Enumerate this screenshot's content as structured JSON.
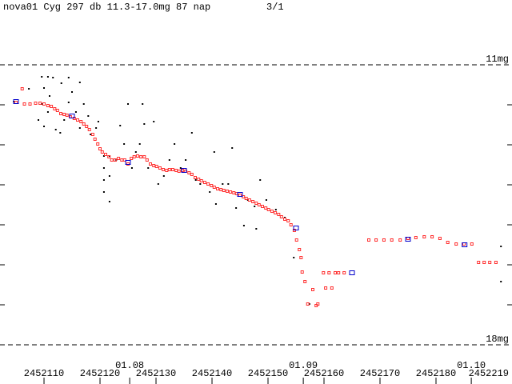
{
  "chart_data": {
    "type": "scatter",
    "title": "nova01 Cyg 297 db 11.3-17.0mg 87 nap",
    "page": "3/1",
    "xlim": [
      2452102.14,
      2452193.57
    ],
    "ylim": [
      9.38,
      18.98
    ],
    "y_inverted": true,
    "xticks": [
      2452110,
      2452120,
      2452130,
      2452140,
      2452150,
      2452160,
      2452170,
      2452180
    ],
    "x_end_label": "2452219",
    "date_ticks": [
      {
        "value": 2452125.3,
        "label": "01.08"
      },
      {
        "value": 2452156.3,
        "label": "01.09"
      },
      {
        "value": 2452186.3,
        "label": "01.10"
      }
    ],
    "yticks": [
      {
        "value": 11,
        "label": "11mg"
      },
      {
        "value": 18,
        "label": "18mg"
      }
    ],
    "yminor": [
      12,
      13,
      14,
      15,
      16,
      17
    ],
    "series": [
      {
        "marker": "dot",
        "color": "#000000",
        "x": [
          2452104.6,
          2452107.3,
          2452109.6,
          2452110.7,
          2452111.6,
          2452113.1,
          2452114.4,
          2452116.4,
          2452110.0,
          2452111.0,
          2452109.6,
          2452110.7,
          2452109.0,
          2452110.0,
          2452112.1,
          2452112.9,
          2452113.6,
          2452114.4,
          2452115.0,
          2452115.7,
          2452116.4,
          2452117.1,
          2452117.9,
          2452118.3,
          2452119.3,
          2452119.7,
          2452120.7,
          2452120.7,
          2452120.7,
          2452120.7,
          2452121.7,
          2452121.7,
          2452121.7,
          2452122.9,
          2452123.6,
          2452124.3,
          2452125.0,
          2452125.7,
          2452126.4,
          2452127.1,
          2452127.6,
          2452127.9,
          2452128.6,
          2452129.6,
          2452130.4,
          2452131.4,
          2452132.4,
          2452133.3,
          2452134.4,
          2452135.3,
          2452136.4,
          2452137.1,
          2452137.9,
          2452139.6,
          2452140.4,
          2452140.7,
          2452141.9,
          2452142.9,
          2452143.6,
          2452144.3,
          2452145.7,
          2452146.4,
          2452147.6,
          2452147.9,
          2452148.6,
          2452149.7,
          2452151.4,
          2452153.0,
          2452154.6,
          2452157.4,
          2452191.6,
          2452191.6
        ],
        "values": [
          11.92,
          11.6,
          11.3,
          11.3,
          11.32,
          11.46,
          11.32,
          11.44,
          11.58,
          11.78,
          11.98,
          12.18,
          12.38,
          12.54,
          12.62,
          12.7,
          12.38,
          11.94,
          11.68,
          12.18,
          12.58,
          11.98,
          12.28,
          12.74,
          12.58,
          12.42,
          13.28,
          13.58,
          13.88,
          14.18,
          13.28,
          13.78,
          14.42,
          13.38,
          12.52,
          12.98,
          11.98,
          13.58,
          13.18,
          12.98,
          11.98,
          12.48,
          13.58,
          12.42,
          13.98,
          13.78,
          13.38,
          12.98,
          13.58,
          13.38,
          12.7,
          13.88,
          13.98,
          14.18,
          13.18,
          14.48,
          13.98,
          13.98,
          13.08,
          14.58,
          15.02,
          14.38,
          14.54,
          15.1,
          13.88,
          14.38,
          14.62,
          14.82,
          15.82,
          16.98,
          15.54,
          16.42
        ]
      },
      {
        "marker": "square",
        "color": "#ff3030",
        "x": [
          2452106.1,
          2452105.0,
          2452106.5,
          2452107.5,
          2452108.5,
          2452109.3,
          2452110.0,
          2452110.7,
          2452111.3,
          2452111.9,
          2452112.4,
          2452113.0,
          2452113.6,
          2452114.1,
          2452114.7,
          2452115.4,
          2452116.0,
          2452116.6,
          2452117.1,
          2452117.6,
          2452118.1,
          2452118.7,
          2452119.1,
          2452119.6,
          2452120.0,
          2452120.4,
          2452121.0,
          2452121.6,
          2452122.1,
          2452122.7,
          2452123.3,
          2452123.9,
          2452124.4,
          2452125.0,
          2452125.6,
          2452126.1,
          2452126.7,
          2452127.3,
          2452127.9,
          2452128.4,
          2452129.0,
          2452129.6,
          2452130.1,
          2452130.7,
          2452131.3,
          2452131.9,
          2452132.4,
          2452133.0,
          2452133.6,
          2452134.1,
          2452134.7,
          2452135.3,
          2452135.9,
          2452136.4,
          2452137.0,
          2452137.6,
          2452138.1,
          2452138.7,
          2452139.3,
          2452139.9,
          2452140.4,
          2452141.0,
          2452141.6,
          2452142.1,
          2452142.7,
          2452143.3,
          2452143.9,
          2452144.4,
          2452145.0,
          2452145.6,
          2452146.1,
          2452146.7,
          2452147.3,
          2452147.9,
          2452148.4,
          2452149.0,
          2452149.6,
          2452150.1,
          2452150.7,
          2452151.3,
          2452151.9,
          2452152.4,
          2452153.0,
          2452153.6,
          2452154.1,
          2452154.7,
          2452155.1,
          2452155.6,
          2452155.9,
          2452156.1,
          2452156.6,
          2452157.1,
          2452158.0,
          2452158.6,
          2452158.9,
          2452159.9,
          2452160.3,
          2452160.9,
          2452161.4,
          2452162.0,
          2452162.6,
          2452163.6,
          2452168.0,
          2452169.3,
          2452170.7,
          2452172.1,
          2452173.6,
          2452175.0,
          2452176.4,
          2452177.9,
          2452179.3,
          2452180.7,
          2452182.1,
          2452183.6,
          2452185.0,
          2452186.4,
          2452187.6,
          2452188.6,
          2452189.6,
          2452190.7
        ],
        "values": [
          11.6,
          11.94,
          11.98,
          11.98,
          11.96,
          11.96,
          11.98,
          12.02,
          12.04,
          12.1,
          12.14,
          12.22,
          12.24,
          12.26,
          12.3,
          12.34,
          12.38,
          12.42,
          12.48,
          12.54,
          12.62,
          12.74,
          12.86,
          12.98,
          13.1,
          13.18,
          13.24,
          13.3,
          13.38,
          13.38,
          13.34,
          13.38,
          13.38,
          13.48,
          13.34,
          13.3,
          13.28,
          13.3,
          13.3,
          13.38,
          13.48,
          13.52,
          13.54,
          13.58,
          13.62,
          13.64,
          13.62,
          13.62,
          13.64,
          13.66,
          13.64,
          13.66,
          13.7,
          13.74,
          13.82,
          13.86,
          13.9,
          13.94,
          13.98,
          14.02,
          14.06,
          14.1,
          14.12,
          14.14,
          14.16,
          14.18,
          14.2,
          14.22,
          14.26,
          14.3,
          14.34,
          14.38,
          14.42,
          14.46,
          14.5,
          14.54,
          14.58,
          14.62,
          14.66,
          14.7,
          14.74,
          14.8,
          14.86,
          14.9,
          15.0,
          15.14,
          15.38,
          15.62,
          15.82,
          16.18,
          16.42,
          16.98,
          16.62,
          17.02,
          16.98,
          16.2,
          16.58,
          16.2,
          16.58,
          16.2,
          16.2,
          16.2,
          15.38,
          15.38,
          15.38,
          15.38,
          15.38,
          15.34,
          15.32,
          15.3,
          15.3,
          15.34,
          15.44,
          15.48,
          15.48,
          15.48,
          15.94,
          15.94,
          15.94,
          15.94
        ]
      },
      {
        "marker": "mean",
        "color": "#0000cc",
        "x": [
          2452105.0,
          2452115.0,
          2452125.0,
          2452135.0,
          2452145.0,
          2452155.0,
          2452165.0,
          2452175.0,
          2452185.1
        ],
        "values": [
          11.92,
          12.28,
          13.44,
          13.64,
          14.24,
          15.08,
          16.2,
          15.36,
          15.5
        ]
      }
    ]
  }
}
